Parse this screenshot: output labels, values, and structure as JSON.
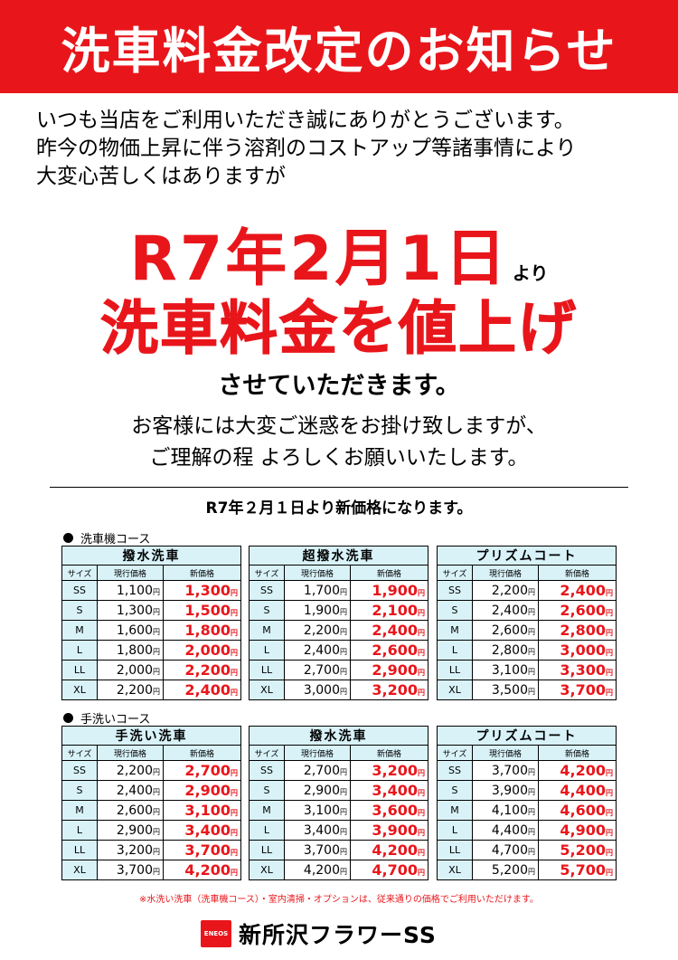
{
  "banner": {
    "title": "洗車料金改定のお知らせ"
  },
  "intro": {
    "lines": [
      "いつも当店をご利用いただき誠にありがとうございます。",
      "昨今の物価上昇に伴う溶剤のコストアップ等諸事情により",
      "大変心苦しくはありますが"
    ]
  },
  "announcement": {
    "date": "R7年2月1日",
    "from": "より",
    "headline": "洗車料金を値上げ",
    "sasete": "させていただきます。"
  },
  "apology": {
    "lines": [
      "お客様には大変ご迷惑をお掛け致しますが、",
      "ご理解の程 よろしくお願いいたします。"
    ]
  },
  "new_price_notice": "R7年２月１日より新価格になります。",
  "yen": "円",
  "columns": {
    "size": "サイズ",
    "current": "現行価格",
    "new": "新価格"
  },
  "sections": [
    {
      "label": "洗車機コース",
      "tables": [
        {
          "title": "撥水洗車",
          "rows": [
            {
              "size": "SS",
              "current": "1,100",
              "new": "1,300"
            },
            {
              "size": "S",
              "current": "1,300",
              "new": "1,500"
            },
            {
              "size": "M",
              "current": "1,600",
              "new": "1,800"
            },
            {
              "size": "L",
              "current": "1,800",
              "new": "2,000"
            },
            {
              "size": "LL",
              "current": "2,000",
              "new": "2,200"
            },
            {
              "size": "XL",
              "current": "2,200",
              "new": "2,400"
            }
          ]
        },
        {
          "title": "超撥水洗車",
          "rows": [
            {
              "size": "SS",
              "current": "1,700",
              "new": "1,900"
            },
            {
              "size": "S",
              "current": "1,900",
              "new": "2,100"
            },
            {
              "size": "M",
              "current": "2,200",
              "new": "2,400"
            },
            {
              "size": "L",
              "current": "2,400",
              "new": "2,600"
            },
            {
              "size": "LL",
              "current": "2,700",
              "new": "2,900"
            },
            {
              "size": "XL",
              "current": "3,000",
              "new": "3,200"
            }
          ]
        },
        {
          "title": "プリズムコート",
          "rows": [
            {
              "size": "SS",
              "current": "2,200",
              "new": "2,400"
            },
            {
              "size": "S",
              "current": "2,400",
              "new": "2,600"
            },
            {
              "size": "M",
              "current": "2,600",
              "new": "2,800"
            },
            {
              "size": "L",
              "current": "2,800",
              "new": "3,000"
            },
            {
              "size": "LL",
              "current": "3,100",
              "new": "3,300"
            },
            {
              "size": "XL",
              "current": "3,500",
              "new": "3,700"
            }
          ]
        }
      ]
    },
    {
      "label": "手洗いコース",
      "tables": [
        {
          "title": "手洗い洗車",
          "rows": [
            {
              "size": "SS",
              "current": "2,200",
              "new": "2,700"
            },
            {
              "size": "S",
              "current": "2,400",
              "new": "2,900"
            },
            {
              "size": "M",
              "current": "2,600",
              "new": "3,100"
            },
            {
              "size": "L",
              "current": "2,900",
              "new": "3,400"
            },
            {
              "size": "LL",
              "current": "3,200",
              "new": "3,700"
            },
            {
              "size": "XL",
              "current": "3,700",
              "new": "4,200"
            }
          ]
        },
        {
          "title": "撥水洗車",
          "rows": [
            {
              "size": "SS",
              "current": "2,700",
              "new": "3,200"
            },
            {
              "size": "S",
              "current": "2,900",
              "new": "3,400"
            },
            {
              "size": "M",
              "current": "3,100",
              "new": "3,600"
            },
            {
              "size": "L",
              "current": "3,400",
              "new": "3,900"
            },
            {
              "size": "LL",
              "current": "3,700",
              "new": "4,200"
            },
            {
              "size": "XL",
              "current": "4,200",
              "new": "4,700"
            }
          ]
        },
        {
          "title": "プリズムコート",
          "rows": [
            {
              "size": "SS",
              "current": "3,700",
              "new": "4,200"
            },
            {
              "size": "S",
              "current": "3,900",
              "new": "4,400"
            },
            {
              "size": "M",
              "current": "4,100",
              "new": "4,600"
            },
            {
              "size": "L",
              "current": "4,400",
              "new": "4,900"
            },
            {
              "size": "LL",
              "current": "4,700",
              "new": "5,200"
            },
            {
              "size": "XL",
              "current": "5,200",
              "new": "5,700"
            }
          ]
        }
      ]
    }
  ],
  "footnote": "※水洗い洗車（洗車機コース）・室内清掃・オプションは、従来通りの価格でご利用いただけます。",
  "brand": {
    "logo_text": "ENEOS",
    "name": "新所沢フラワーSS"
  },
  "colors": {
    "accent_red": "#e8161b",
    "table_header": "#d8f2f8"
  }
}
